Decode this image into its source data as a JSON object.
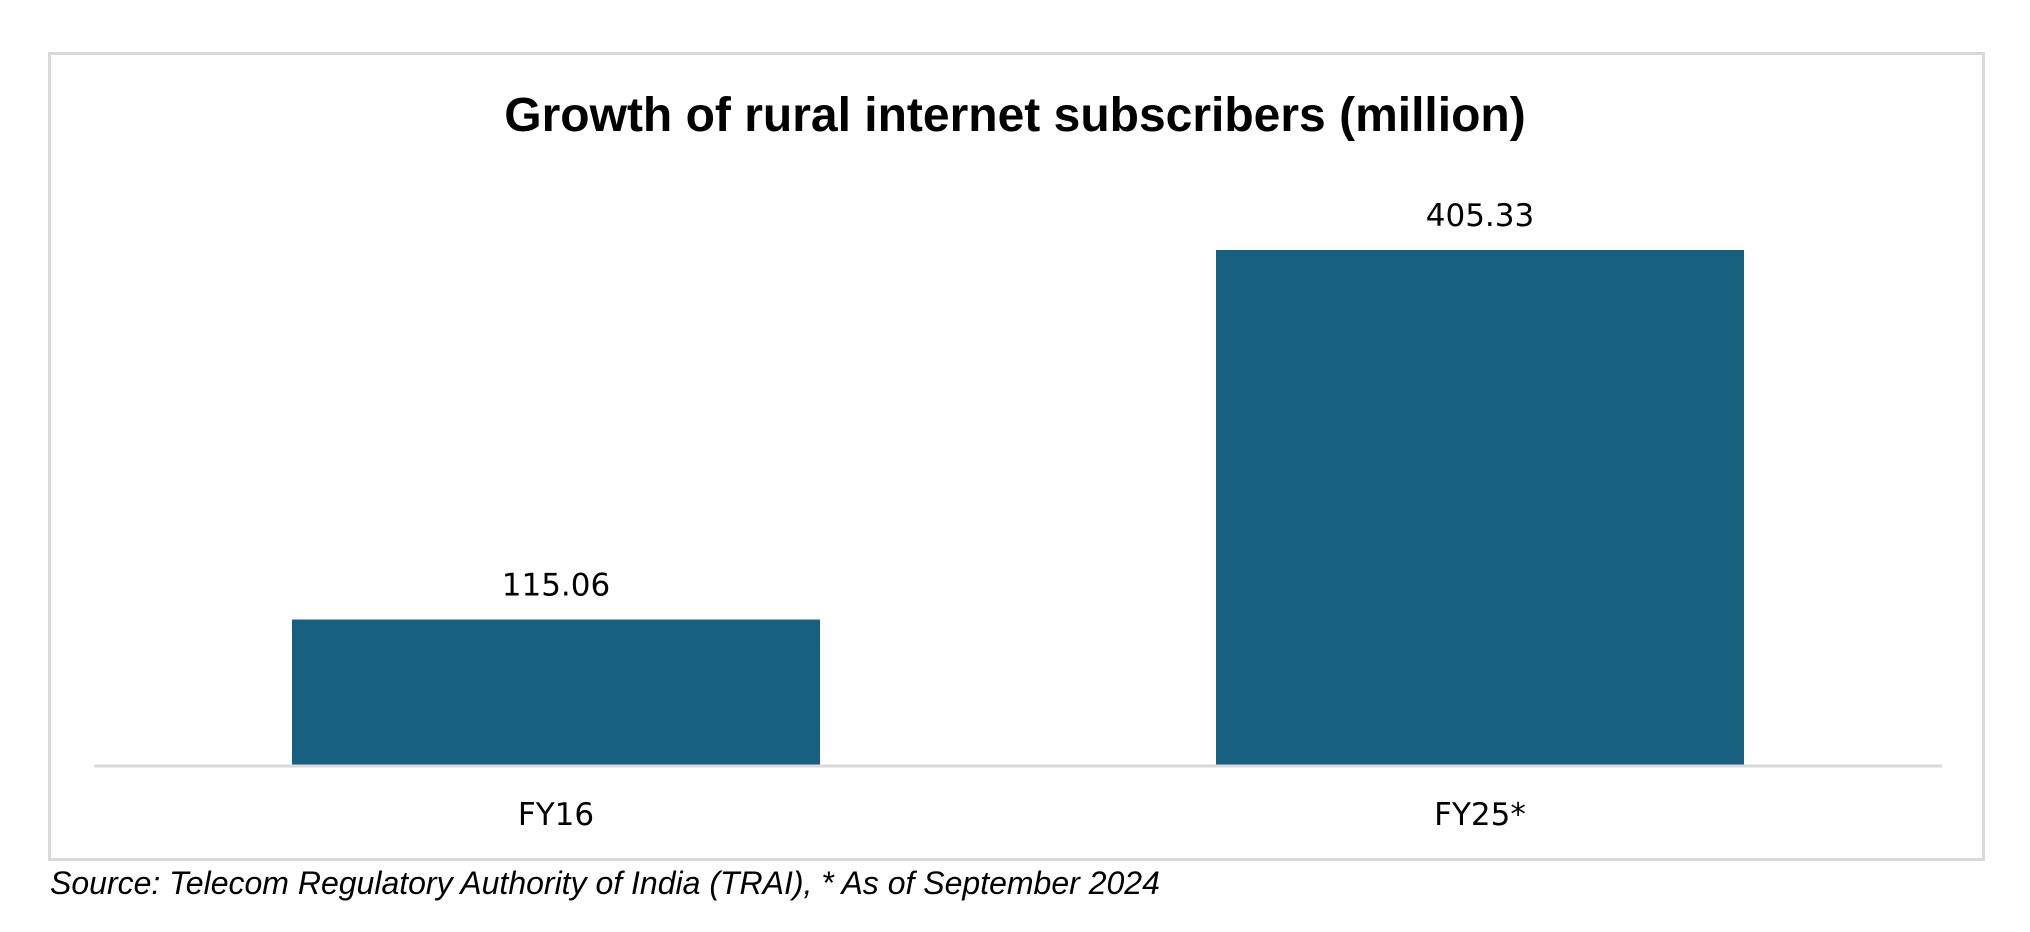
{
  "chart_data": {
    "type": "bar",
    "title": "Growth of rural internet subscribers (million)",
    "categories": [
      "FY16",
      "FY25*"
    ],
    "values": [
      115.06,
      405.33
    ],
    "value_labels": [
      "115.06",
      "405.33"
    ],
    "xlabel": "",
    "ylabel": "",
    "ylim": [
      0,
      405.33
    ],
    "grid": false,
    "legend": "none",
    "bar_color": "#17607f",
    "axis_color": "#d9d9d9"
  },
  "source": "Source: Telecom Regulatory Authority of India (TRAI), * As of September 2024"
}
